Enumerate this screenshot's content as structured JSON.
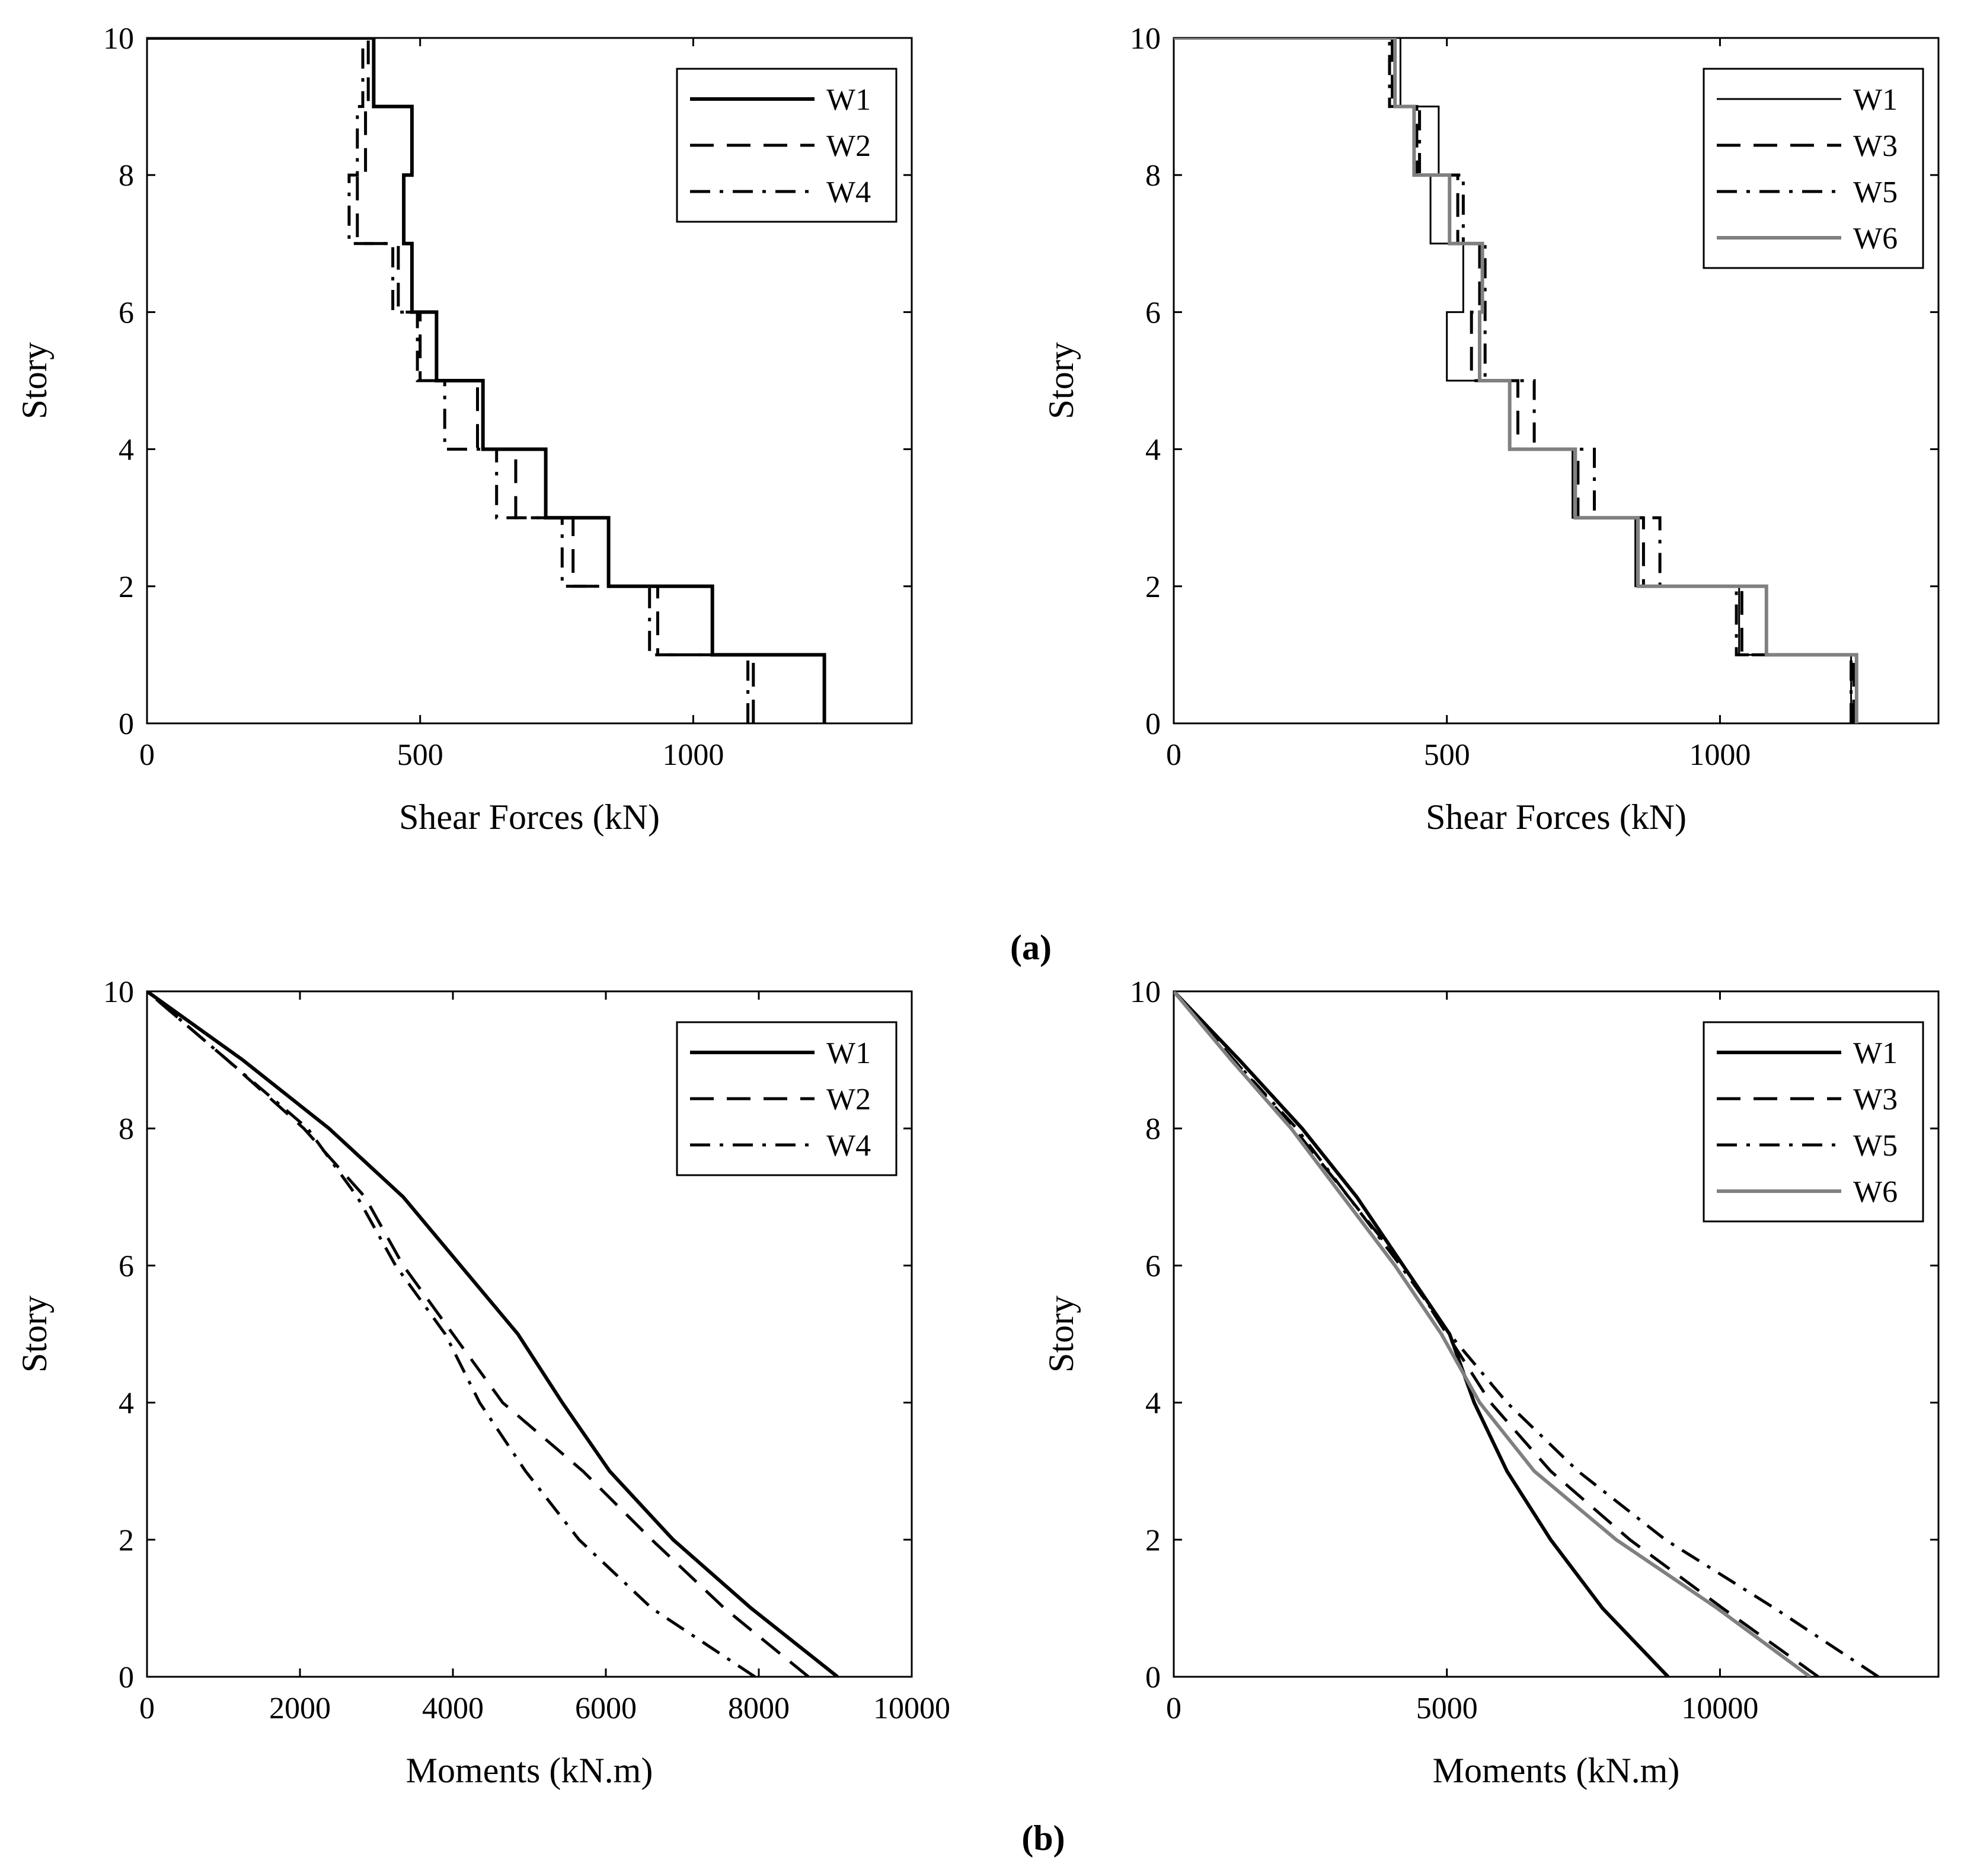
{
  "panel_labels": {
    "a": "(a)",
    "b": "(b)"
  },
  "colors": {
    "black": "#000000",
    "gray": "#808080"
  },
  "chart_data": [
    {
      "id": "shear-left",
      "type": "line",
      "step": true,
      "xlabel": "Shear Forces (kN)",
      "ylabel": "Story",
      "xlim": [
        0,
        1400
      ],
      "ylim": [
        0,
        10
      ],
      "xticks": [
        0,
        500,
        1000
      ],
      "xtick_labels": [
        "0",
        "500",
        "1000"
      ],
      "yticks": [
        0,
        2,
        4,
        6,
        8,
        10
      ],
      "ytick_labels": [
        "0",
        "2",
        "4",
        "6",
        "8",
        "10"
      ],
      "legend_position": "top-right",
      "series": [
        {
          "name": "W1",
          "style": "solid",
          "color": "#000000",
          "width": 6,
          "shear": [
            1240,
            1035,
            845,
            730,
            615,
            530,
            485,
            470,
            485,
            415
          ]
        },
        {
          "name": "W2",
          "style": "dashed",
          "color": "#000000",
          "width": 5,
          "shear": [
            1110,
            935,
            780,
            675,
            605,
            500,
            460,
            385,
            400,
            405
          ]
        },
        {
          "name": "W4",
          "style": "dashdot",
          "color": "#000000",
          "width": 5,
          "shear": [
            1100,
            920,
            760,
            640,
            545,
            495,
            450,
            370,
            385,
            395
          ]
        }
      ]
    },
    {
      "id": "shear-right",
      "type": "line",
      "step": true,
      "xlabel": "Shear Forces (kN)",
      "ylabel": "Story",
      "xlim": [
        0,
        1400
      ],
      "ylim": [
        0,
        10
      ],
      "xticks": [
        0,
        500,
        1000
      ],
      "xtick_labels": [
        "0",
        "500",
        "1000"
      ],
      "yticks": [
        0,
        2,
        4,
        6,
        8,
        10
      ],
      "ytick_labels": [
        "0",
        "2",
        "4",
        "6",
        "8",
        "10"
      ],
      "legend_position": "top-right",
      "series": [
        {
          "name": "W1",
          "style": "solid",
          "color": "#000000",
          "width": 3,
          "shear": [
            1240,
            1035,
            845,
            730,
            615,
            500,
            530,
            470,
            485,
            415
          ]
        },
        {
          "name": "W3",
          "style": "dashed",
          "color": "#000000",
          "width": 5,
          "shear": [
            1245,
            1040,
            860,
            740,
            630,
            545,
            560,
            520,
            445,
            400
          ]
        },
        {
          "name": "W5",
          "style": "dashdot",
          "color": "#000000",
          "width": 5,
          "shear": [
            1240,
            1030,
            890,
            770,
            660,
            570,
            570,
            530,
            450,
            395
          ]
        },
        {
          "name": "W6",
          "style": "solid",
          "color": "#808080",
          "width": 6,
          "shear": [
            1250,
            1085,
            850,
            735,
            615,
            560,
            565,
            505,
            440,
            405
          ]
        }
      ]
    },
    {
      "id": "moment-left",
      "type": "line",
      "xlabel": "Moments (kN.m)",
      "ylabel": "Story",
      "xlim": [
        0,
        10000
      ],
      "ylim": [
        0,
        10
      ],
      "xticks": [
        0,
        2000,
        4000,
        6000,
        8000,
        10000
      ],
      "xtick_labels": [
        "0",
        "2000",
        "4000",
        "6000",
        "8000",
        "10000"
      ],
      "yticks": [
        0,
        2,
        4,
        6,
        8,
        10
      ],
      "ytick_labels": [
        "0",
        "2",
        "4",
        "6",
        "8",
        "10"
      ],
      "legend_position": "top-right",
      "series": [
        {
          "name": "W1",
          "style": "solid",
          "color": "#000000",
          "width": 6,
          "x": [
            9030,
            7900,
            6880,
            6050,
            5430,
            4850,
            4100,
            3350,
            2380,
            1250,
            0
          ],
          "y": [
            0,
            1,
            2,
            3,
            4,
            5,
            6,
            7,
            8,
            9,
            10
          ]
        },
        {
          "name": "W2",
          "style": "dashed",
          "color": "#000000",
          "width": 5,
          "x": [
            8650,
            7550,
            6600,
            5700,
            4650,
            4000,
            3350,
            2850,
            2050,
            1050,
            0
          ],
          "y": [
            0,
            1,
            2,
            3,
            4,
            5,
            6,
            7,
            8,
            9,
            10
          ]
        },
        {
          "name": "W4",
          "style": "dashdot",
          "color": "#000000",
          "width": 5,
          "x": [
            7950,
            6600,
            5650,
            4950,
            4350,
            3900,
            3250,
            2750,
            2100,
            1050,
            0
          ],
          "y": [
            0,
            1,
            2,
            3,
            4,
            5,
            6,
            7,
            8,
            9,
            10
          ]
        }
      ]
    },
    {
      "id": "moment-right",
      "type": "line",
      "xlabel": "Moments (kN.m)",
      "ylabel": "Story",
      "xlim": [
        0,
        14000
      ],
      "ylim": [
        0,
        10
      ],
      "xticks": [
        0,
        5000,
        10000
      ],
      "xtick_labels": [
        "0",
        "5000",
        "10000"
      ],
      "yticks": [
        0,
        2,
        4,
        6,
        8,
        10
      ],
      "ytick_labels": [
        "0",
        "2",
        "4",
        "6",
        "8",
        "10"
      ],
      "legend_position": "top-right",
      "series": [
        {
          "name": "W1",
          "style": "solid",
          "color": "#000000",
          "width": 6,
          "x": [
            9050,
            7850,
            6900,
            6100,
            5500,
            5050,
            4200,
            3350,
            2350,
            1200,
            0
          ],
          "y": [
            0,
            1,
            2,
            3,
            4,
            5,
            6,
            7,
            8,
            9,
            10
          ]
        },
        {
          "name": "W3",
          "style": "dashed",
          "color": "#000000",
          "width": 5,
          "x": [
            11800,
            10050,
            8350,
            6900,
            5800,
            5000,
            4200,
            3200,
            2200,
            1100,
            0
          ],
          "y": [
            0,
            1,
            2,
            3,
            4,
            5,
            6,
            7,
            8,
            9,
            10
          ]
        },
        {
          "name": "W5",
          "style": "dashdot",
          "color": "#000000",
          "width": 5,
          "x": [
            12900,
            11000,
            9000,
            7400,
            6100,
            5050,
            4150,
            3200,
            2250,
            1100,
            0
          ],
          "y": [
            0,
            1,
            2,
            3,
            4,
            5,
            6,
            7,
            8,
            9,
            10
          ]
        },
        {
          "name": "W6",
          "style": "solid",
          "color": "#808080",
          "width": 6,
          "x": [
            11650,
            9950,
            8100,
            6600,
            5600,
            4900,
            4050,
            3100,
            2150,
            1050,
            0
          ],
          "y": [
            0,
            1,
            2,
            3,
            4,
            5,
            6,
            7,
            8,
            9,
            10
          ]
        }
      ]
    }
  ]
}
